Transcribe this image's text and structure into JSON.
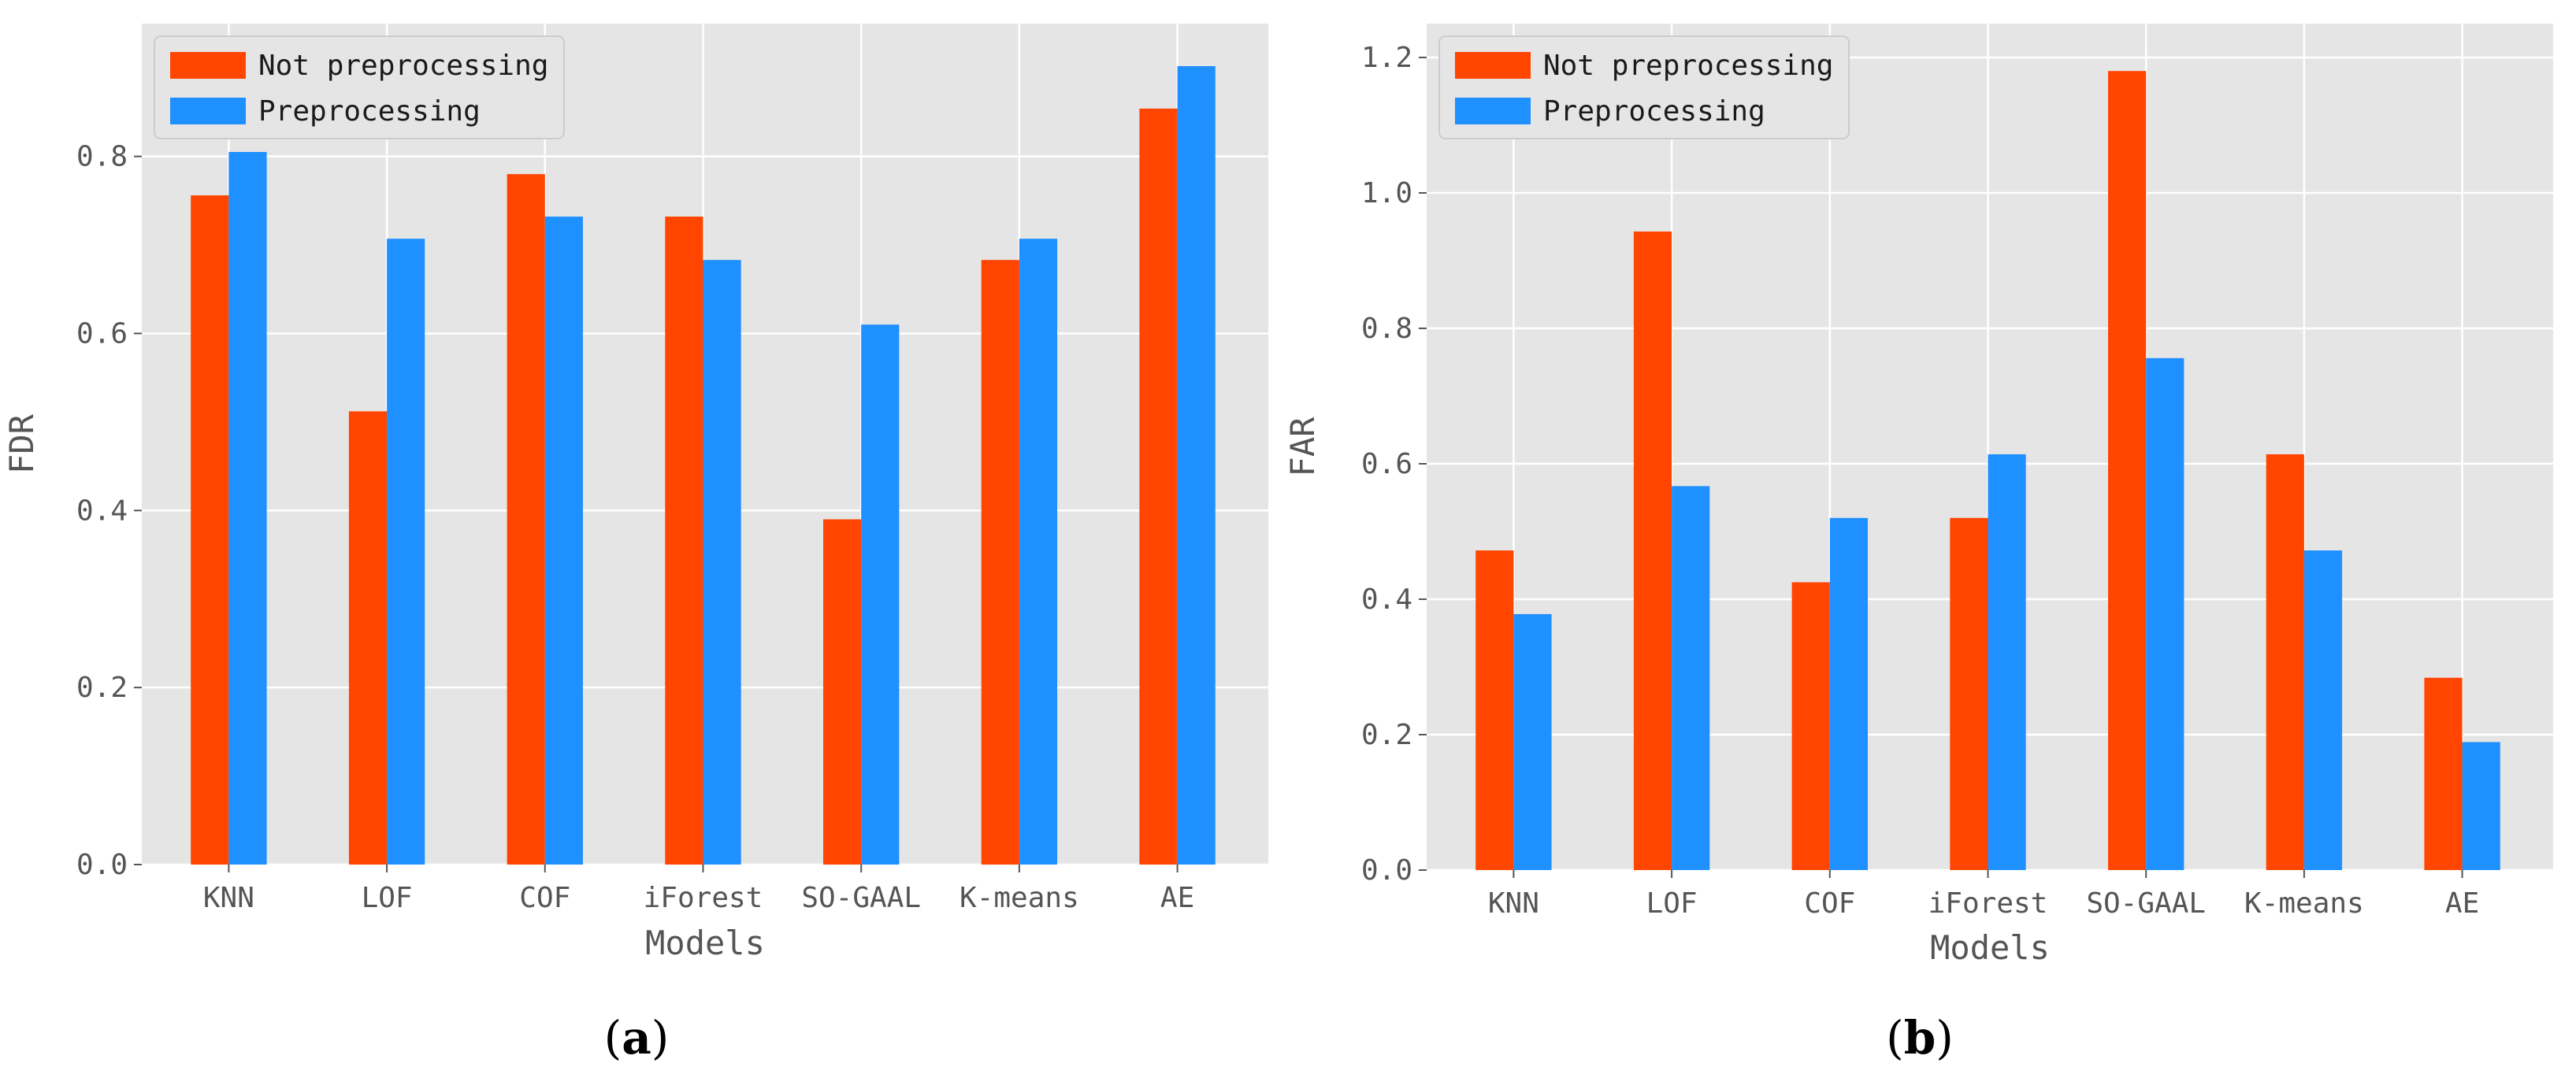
{
  "chart_data": [
    {
      "type": "bar",
      "panel_label": "a",
      "categories": [
        "KNN",
        "LOF",
        "COF",
        "iForest",
        "SO-GAAL",
        "K-means",
        "AE"
      ],
      "series": [
        {
          "name": "Not preprocessing",
          "color": "#ff4500",
          "values": [
            0.756,
            0.512,
            0.78,
            0.732,
            0.39,
            0.683,
            0.854
          ]
        },
        {
          "name": "Preprocessing",
          "color": "#1e90ff",
          "values": [
            0.805,
            0.707,
            0.732,
            0.683,
            0.61,
            0.707,
            0.902
          ]
        }
      ],
      "xlabel": "Models",
      "ylabel": "FDR",
      "ylim": [
        0,
        0.95
      ],
      "yticks": [
        0.0,
        0.2,
        0.4,
        0.6,
        0.8
      ],
      "ytick_labels": [
        "0.0",
        "0.2",
        "0.4",
        "0.6",
        "0.8"
      ],
      "legend_position": "top-left"
    },
    {
      "type": "bar",
      "panel_label": "b",
      "categories": [
        "KNN",
        "LOF",
        "COF",
        "iForest",
        "SO-GAAL",
        "K-means",
        "AE"
      ],
      "series": [
        {
          "name": "Not preprocessing",
          "color": "#ff4500",
          "values": [
            0.472,
            0.943,
            0.425,
            0.52,
            1.18,
            0.614,
            0.284
          ]
        },
        {
          "name": "Preprocessing",
          "color": "#1e90ff",
          "values": [
            0.378,
            0.567,
            0.52,
            0.614,
            0.756,
            0.472,
            0.189
          ]
        }
      ],
      "xlabel": "Models",
      "ylabel": "FAR",
      "ylim": [
        0,
        1.25
      ],
      "yticks": [
        0.0,
        0.2,
        0.4,
        0.6,
        0.8,
        1.0,
        1.2
      ],
      "ytick_labels": [
        "0.0",
        "0.2",
        "0.4",
        "0.6",
        "0.8",
        "1.0",
        "1.2"
      ],
      "legend_position": "top-left"
    }
  ]
}
